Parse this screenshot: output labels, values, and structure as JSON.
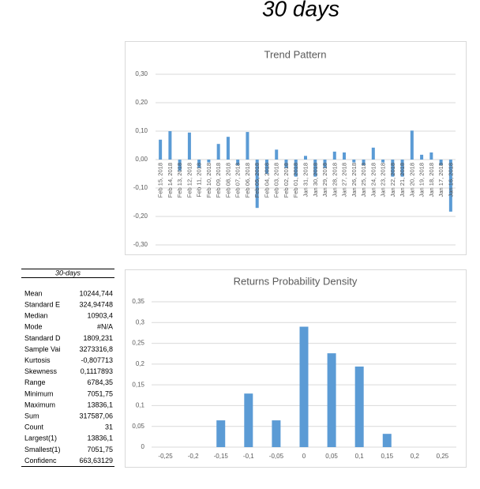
{
  "title": "30 days",
  "stats": {
    "header": "30-days",
    "rows": [
      [
        "Mean",
        "10244,744"
      ],
      [
        "Standard E",
        "324,94748"
      ],
      [
        "Median",
        "10903,4"
      ],
      [
        "Mode",
        "#N/A"
      ],
      [
        "Standard D",
        "1809,231"
      ],
      [
        "Sample Vai",
        "3273316,8"
      ],
      [
        "Kurtosis",
        "-0,807713"
      ],
      [
        "Skewness",
        "0,1117893"
      ],
      [
        "Range",
        "6784,35"
      ],
      [
        "Minimum",
        "7051,75"
      ],
      [
        "Maximum",
        "13836,1"
      ],
      [
        "Sum",
        "317587,06"
      ],
      [
        "Count",
        "31"
      ],
      [
        "Largest(1)",
        "13836,1"
      ],
      [
        "Smallest(1)",
        "7051,75"
      ],
      [
        "Confidenc",
        "663,63129"
      ]
    ]
  },
  "chart_data": [
    {
      "type": "bar",
      "title": "Trend Pattern",
      "color": "#5b9bd5",
      "grid": true,
      "categories": [
        "Feb 15, 2018",
        "Feb 14, 2018",
        "Feb 13, 2018",
        "Feb 12, 2018",
        "Feb 11, 2018",
        "Feb 10, 2018",
        "Feb 09, 2018",
        "Feb 08, 2018",
        "Feb 07, 2018",
        "Feb 06, 2018",
        "Feb 05, 2018",
        "Feb 04, 2018",
        "Feb 03, 2018",
        "Feb 02, 2018",
        "Feb 01, 2018",
        "Jan 31, 2018",
        "Jan 30, 2018",
        "Jan 29, 2018",
        "Jan 28, 2018",
        "Jan 27, 2018",
        "Jan 26, 2018",
        "Jan 25, 2018",
        "Jan 24, 2018",
        "Jan 23, 2018",
        "Jan 22, 2018",
        "Jan 21, 2018",
        "Jan 20, 2018",
        "Jan 19, 2018",
        "Jan 18, 2018",
        "Jan 17, 2018",
        "Jan 16, 2018"
      ],
      "values": [
        0.07,
        0.1,
        -0.04,
        0.095,
        -0.03,
        -0.01,
        0.055,
        0.08,
        -0.02,
        0.097,
        -0.17,
        -0.05,
        0.035,
        -0.03,
        -0.06,
        0.013,
        -0.06,
        -0.03,
        0.028,
        0.025,
        -0.01,
        -0.02,
        0.042,
        -0.01,
        -0.06,
        -0.06,
        0.102,
        0.017,
        0.025,
        -0.02,
        -0.183
      ],
      "ylim": [
        -0.3,
        0.3
      ],
      "yticks": [
        {
          "value": -0.3,
          "label": "-0,30"
        },
        {
          "value": -0.2,
          "label": "-0,20"
        },
        {
          "value": -0.1,
          "label": "-0,10"
        },
        {
          "value": 0,
          "label": "0,00"
        },
        {
          "value": 0.1,
          "label": "0,10"
        },
        {
          "value": 0.2,
          "label": "0,20"
        },
        {
          "value": 0.3,
          "label": "0,30"
        }
      ]
    },
    {
      "type": "bar",
      "title": "Returns Probability Density",
      "color": "#5b9bd5",
      "grid": true,
      "categories": [
        "-0,25",
        "-0,2",
        "-0,15",
        "-0,1",
        "-0,05",
        "0",
        "0,05",
        "0,1",
        "0,15",
        "0,2",
        "0,25"
      ],
      "values": [
        0,
        0,
        0.0645,
        0.129,
        0.0645,
        0.29,
        0.226,
        0.194,
        0.032,
        0,
        0
      ],
      "ylim": [
        0,
        0.35
      ],
      "yticks": [
        0,
        {
          "value": 0.05,
          "label": "0,05"
        },
        {
          "value": 0.1,
          "label": "0,1"
        },
        {
          "value": 0.15,
          "label": "0,15"
        },
        {
          "value": 0.2,
          "label": "0,2"
        },
        {
          "value": 0.25,
          "label": "0,25"
        },
        {
          "value": 0.3,
          "label": "0,3"
        },
        {
          "value": 0.35,
          "label": "0,35"
        }
      ]
    }
  ]
}
